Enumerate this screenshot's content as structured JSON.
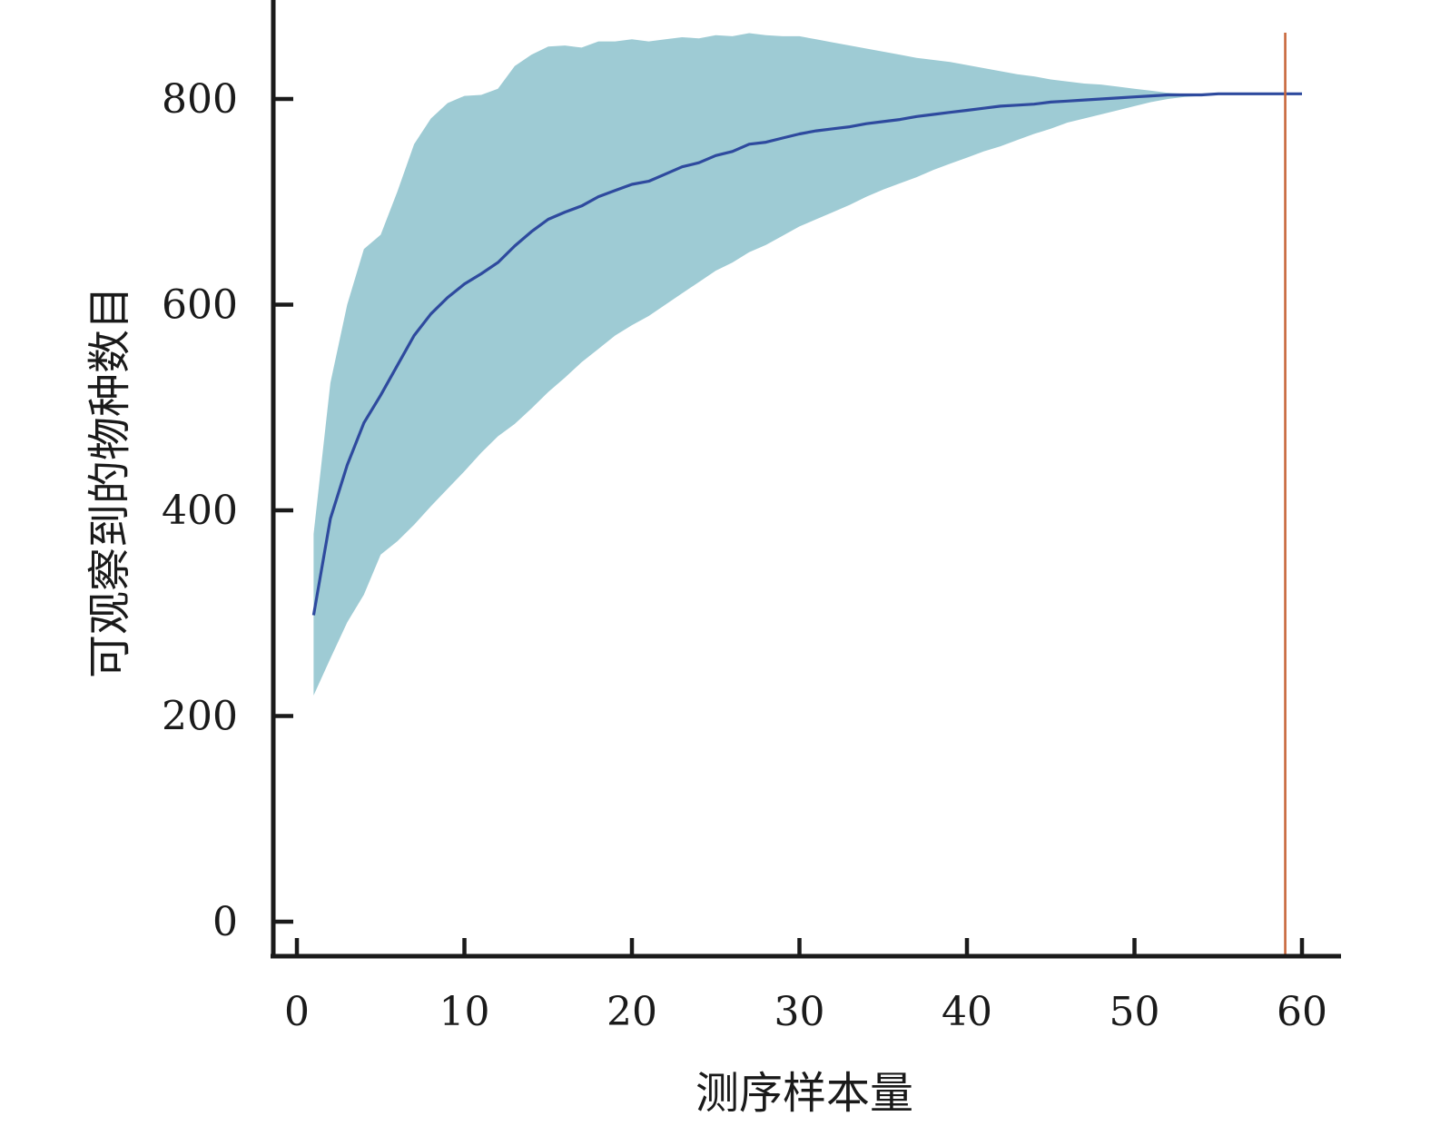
{
  "chart_data": {
    "type": "area",
    "title": "",
    "xlabel": "测序样本量",
    "ylabel": "可观察到的物种数目",
    "xlim": [
      -1.5,
      62
    ],
    "ylim": [
      -30,
      900
    ],
    "xticks": [
      0,
      10,
      20,
      30,
      40,
      50,
      60
    ],
    "yticks": [
      0,
      200,
      400,
      600,
      800
    ],
    "xtick_labels": [
      "0",
      "10",
      "20",
      "30",
      "40",
      "50",
      "60"
    ],
    "ytick_labels": [
      "0",
      "200",
      "400",
      "600",
      "800"
    ],
    "grid": false,
    "legend": "none",
    "x": [
      1,
      2,
      3,
      4,
      5,
      6,
      7,
      8,
      9,
      10,
      11,
      12,
      13,
      14,
      15,
      16,
      17,
      18,
      19,
      20,
      21,
      22,
      23,
      24,
      25,
      26,
      27,
      28,
      29,
      30,
      31,
      32,
      33,
      34,
      35,
      36,
      37,
      38,
      39,
      40,
      41,
      42,
      43,
      44,
      45,
      46,
      47,
      48,
      49,
      50,
      51,
      52,
      53,
      54,
      55,
      56,
      57,
      58,
      59,
      60
    ],
    "series": [
      {
        "role": "mean",
        "color": "#2e4a9e",
        "values": [
          298,
          392,
          444,
          485,
          512,
          541,
          570,
          591,
          607,
          620,
          630,
          641,
          657,
          671,
          683,
          690,
          696,
          705,
          711,
          717,
          720,
          727,
          734,
          738,
          745,
          749,
          756,
          758,
          762,
          766,
          769,
          771,
          773,
          776,
          778,
          780,
          783,
          785,
          787,
          789,
          791,
          793,
          794,
          795,
          797,
          798,
          799,
          800,
          801,
          802,
          803,
          804,
          804,
          804,
          805,
          805,
          805,
          805,
          805,
          805
        ]
      },
      {
        "role": "upper",
        "color": "#9ecbd4",
        "values": [
          377,
          524,
          600,
          654,
          668,
          710,
          756,
          781,
          796,
          803,
          804,
          810,
          832,
          843,
          851,
          852,
          850,
          856,
          856,
          858,
          856,
          858,
          860,
          859,
          862,
          861,
          864,
          862,
          861,
          861,
          858,
          855,
          852,
          849,
          846,
          843,
          840,
          838,
          836,
          833,
          830,
          827,
          824,
          822,
          819,
          817,
          815,
          814,
          812,
          810,
          808,
          806,
          805,
          805,
          805,
          805,
          805,
          805,
          805,
          805
        ]
      },
      {
        "role": "lower",
        "color": "#9ecbd4",
        "values": [
          220,
          256,
          291,
          318,
          357,
          370,
          386,
          404,
          421,
          438,
          456,
          472,
          484,
          499,
          515,
          529,
          544,
          557,
          570,
          580,
          589,
          600,
          611,
          622,
          633,
          641,
          651,
          658,
          667,
          676,
          683,
          690,
          697,
          705,
          712,
          718,
          724,
          731,
          737,
          743,
          749,
          754,
          760,
          766,
          771,
          777,
          781,
          785,
          789,
          793,
          797,
          800,
          802,
          803,
          804,
          805,
          805,
          805,
          805,
          805
        ]
      }
    ],
    "vline": {
      "x": 59,
      "color": "#c8683c"
    }
  }
}
